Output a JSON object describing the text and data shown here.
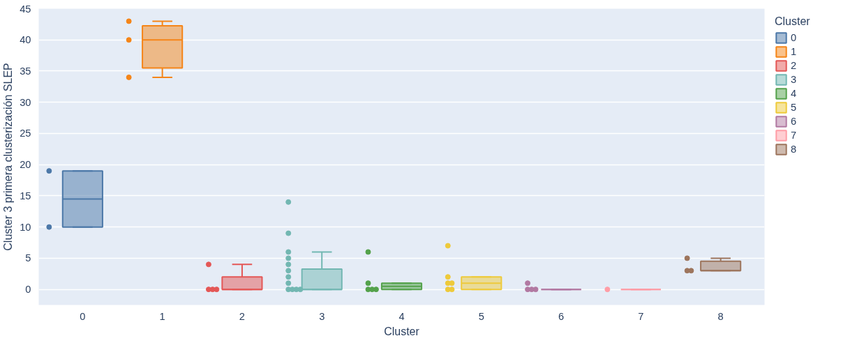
{
  "chart_data": {
    "type": "box",
    "xlabel": "Cluster",
    "ylabel": "Cluster 3 primera clusterización SLEP",
    "legend_title": "Cluster",
    "legend": "top right",
    "grid": "y",
    "marker": "circle",
    "categories": [
      "0",
      "1",
      "2",
      "3",
      "4",
      "5",
      "6",
      "7",
      "8"
    ],
    "ylim": [
      -2.5,
      45
    ],
    "yticks": [
      0,
      5,
      10,
      15,
      20,
      25,
      30,
      35,
      40,
      45
    ],
    "series": [
      {
        "type": "box",
        "name": "0",
        "color": "#4c78a8",
        "x": [
          "0"
        ],
        "boxes": [
          {
            "low": 10,
            "q1": 10,
            "median": 14.5,
            "q3": 19,
            "high": 19
          }
        ]
      },
      {
        "type": "box",
        "name": "1",
        "color": "#f58518",
        "x": [
          "1"
        ],
        "boxes": [
          {
            "low": 34,
            "q1": 35.5,
            "median": 40,
            "q3": 42.25,
            "high": 43
          }
        ]
      },
      {
        "type": "box",
        "name": "2",
        "color": "#e45756",
        "x": [
          "2"
        ],
        "boxes": [
          {
            "low": 0,
            "q1": 0,
            "median": 0,
            "q3": 2,
            "high": 4
          }
        ]
      },
      {
        "type": "box",
        "name": "3",
        "color": "#72b7b2",
        "x": [
          "3"
        ],
        "boxes": [
          {
            "low": 0,
            "q1": 0,
            "median": 0,
            "q3": 3.25,
            "high": 6
          }
        ]
      },
      {
        "type": "box",
        "name": "4",
        "color": "#54a24b",
        "x": [
          "4"
        ],
        "boxes": [
          {
            "low": 0,
            "q1": 0,
            "median": 0.5,
            "q3": 1,
            "high": 1
          }
        ]
      },
      {
        "type": "box",
        "name": "5",
        "color": "#eeca3b",
        "x": [
          "5"
        ],
        "boxes": [
          {
            "low": 0,
            "q1": 0,
            "median": 1,
            "q3": 2,
            "high": 2
          }
        ]
      },
      {
        "type": "box",
        "name": "6",
        "color": "#b279a2",
        "x": [
          "6"
        ],
        "boxes": [
          {
            "low": 0,
            "q1": 0,
            "median": 0,
            "q3": 0,
            "high": 0
          }
        ]
      },
      {
        "type": "box",
        "name": "7",
        "color": "#ff9da6",
        "x": [
          "7"
        ],
        "boxes": [
          {
            "low": 0,
            "q1": 0,
            "median": 0,
            "q3": 0,
            "high": 0
          }
        ]
      },
      {
        "type": "box",
        "name": "8",
        "color": "#9d755d",
        "x": [
          "8"
        ],
        "boxes": [
          {
            "low": 3,
            "q1": 3,
            "median": 3,
            "q3": 4.5,
            "high": 5
          }
        ]
      },
      {
        "type": "scatter",
        "color": "#4c78a8",
        "x": [
          "0",
          "0"
        ],
        "values": [
          19,
          10
        ]
      },
      {
        "type": "scatter",
        "color": "#f58518",
        "x": [
          "1",
          "1",
          "1"
        ],
        "values": [
          43,
          40,
          34
        ]
      },
      {
        "type": "scatter",
        "color": "#e45756",
        "x": [
          "2",
          "2",
          "2",
          "2"
        ],
        "values": [
          4,
          0,
          0,
          0
        ]
      },
      {
        "type": "scatter",
        "color": "#72b7b2",
        "x": [
          "3",
          "3",
          "3",
          "3",
          "3",
          "3",
          "3",
          "3",
          "3",
          "3",
          "3",
          "3"
        ],
        "values": [
          14,
          9,
          6,
          5,
          4,
          3,
          2,
          1,
          0,
          0,
          0,
          0
        ]
      },
      {
        "type": "scatter",
        "color": "#54a24b",
        "x": [
          "4",
          "4",
          "4",
          "4",
          "4"
        ],
        "values": [
          6,
          1,
          0,
          0,
          0
        ]
      },
      {
        "type": "scatter",
        "color": "#eeca3b",
        "x": [
          "5",
          "5",
          "5",
          "5",
          "5",
          "5"
        ],
        "values": [
          7,
          2,
          1,
          1,
          0,
          0
        ]
      },
      {
        "type": "scatter",
        "color": "#b279a2",
        "x": [
          "6",
          "6",
          "6",
          "6"
        ],
        "values": [
          1,
          0,
          0,
          0
        ]
      },
      {
        "type": "scatter",
        "color": "#ff9da6",
        "x": [
          "7"
        ],
        "values": [
          0
        ]
      },
      {
        "type": "scatter",
        "color": "#9d755d",
        "x": [
          "8",
          "8",
          "8"
        ],
        "values": [
          5,
          3,
          3
        ]
      }
    ]
  }
}
